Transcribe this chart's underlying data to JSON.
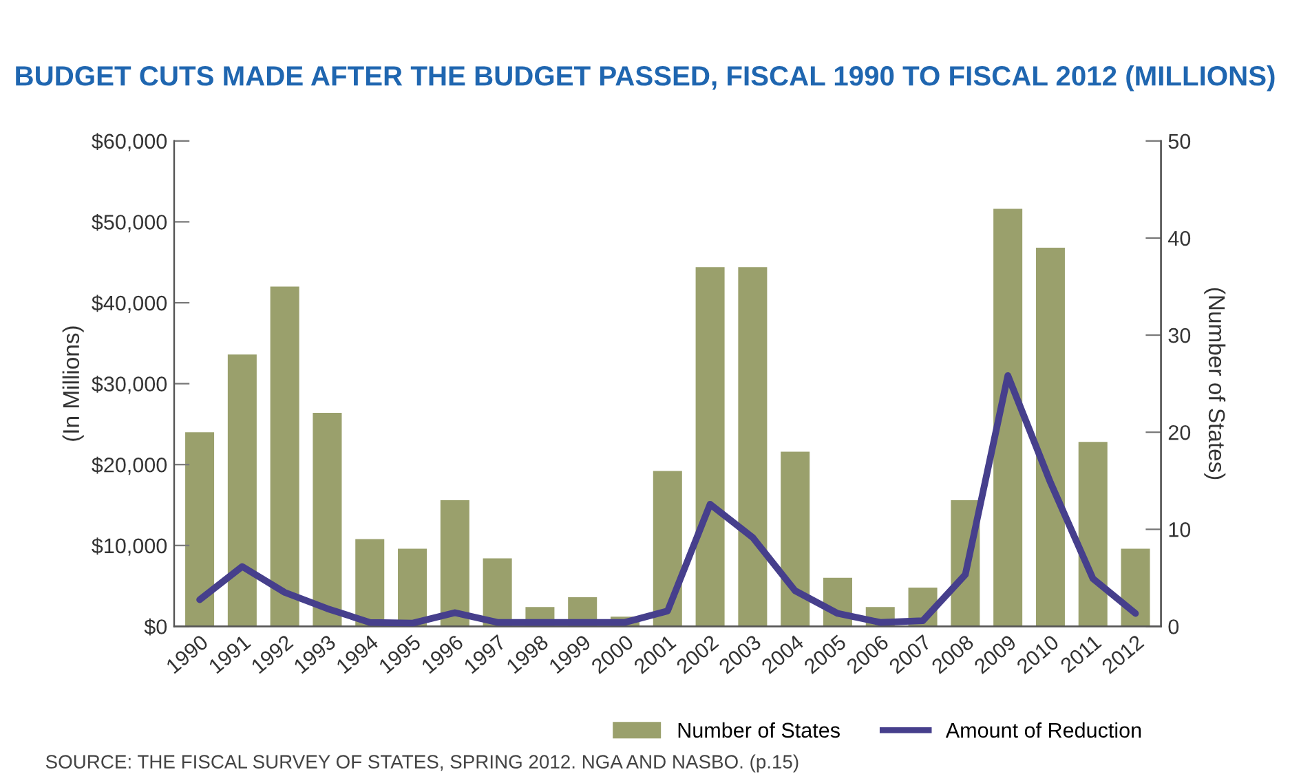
{
  "chart_data": {
    "type": "bar",
    "title": "BUDGET CUTS MADE AFTER THE BUDGET PASSED, FISCAL 1990 TO FISCAL 2012 (MILLIONS)",
    "ylabel": "(In Millions)",
    "y2label": "(Number of States)",
    "categories": [
      "1990",
      "1991",
      "1992",
      "1993",
      "1994",
      "1995",
      "1996",
      "1997",
      "1998",
      "1999",
      "2000",
      "2001",
      "2002",
      "2003",
      "2004",
      "2005",
      "2006",
      "2007",
      "2008",
      "2009",
      "2010",
      "2011",
      "2012"
    ],
    "series": [
      {
        "name": "Number of States",
        "axis": "y2",
        "color": "#9aa06c",
        "values": [
          20,
          28,
          35,
          22,
          9,
          8,
          13,
          7,
          2,
          3,
          1,
          16,
          37,
          37,
          18,
          5,
          2,
          4,
          13,
          43,
          39,
          19,
          8
        ]
      },
      {
        "name": "Amount of Reduction",
        "type": "line",
        "axis": "y",
        "color": "#463f8c",
        "values": [
          3300,
          7400,
          4200,
          2200,
          500,
          400,
          1700,
          500,
          500,
          500,
          500,
          1900,
          15100,
          11000,
          4400,
          1600,
          500,
          700,
          6400,
          31000,
          17800,
          5900,
          1600
        ]
      }
    ],
    "ylim": [
      0,
      60000
    ],
    "yticks": [
      {
        "value": 0,
        "label": "$0"
      },
      {
        "value": 10000,
        "label": "$10,000"
      },
      {
        "value": 20000,
        "label": "$20,000"
      },
      {
        "value": 30000,
        "label": "$30,000"
      },
      {
        "value": 40000,
        "label": "$40,000"
      },
      {
        "value": 50000,
        "label": "$50,000"
      },
      {
        "value": 60000,
        "label": "$60,000"
      }
    ],
    "y2lim": [
      0,
      50
    ],
    "y2ticks": [
      0,
      10,
      20,
      30,
      40,
      50
    ],
    "legend": "bottom right",
    "grid": false,
    "marker": "none",
    "line_style": "solid",
    "annotations": [
      "SOURCE: THE FISCAL SURVEY OF STATES, SPRING 2012. NGA AND NASBO. (p.15)"
    ]
  }
}
